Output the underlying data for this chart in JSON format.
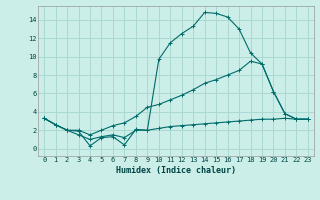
{
  "xlabel": "Humidex (Indice chaleur)",
  "bg_color": "#cceee8",
  "grid_color": "#aad8d0",
  "line_color": "#006b6b",
  "xlim": [
    -0.5,
    23.5
  ],
  "ylim": [
    -0.8,
    15.5
  ],
  "line1_x": [
    0,
    1,
    2,
    3,
    4,
    5,
    6,
    7,
    8,
    9,
    10,
    11,
    12,
    13,
    14,
    15,
    16,
    17,
    18,
    19,
    20,
    21,
    22,
    23
  ],
  "line1_y": [
    3.3,
    2.6,
    2.0,
    1.9,
    0.3,
    1.2,
    1.3,
    0.4,
    2.1,
    2.0,
    9.7,
    11.5,
    12.5,
    13.3,
    14.8,
    14.7,
    14.3,
    13.0,
    10.4,
    9.2,
    6.2,
    3.8,
    3.2,
    3.2
  ],
  "line2_x": [
    0,
    1,
    2,
    3,
    4,
    5,
    6,
    7,
    8,
    9,
    10,
    11,
    12,
    13,
    14,
    15,
    16,
    17,
    18,
    19,
    20,
    21,
    22,
    23
  ],
  "line2_y": [
    3.3,
    2.6,
    2.0,
    2.0,
    1.5,
    2.0,
    2.5,
    2.8,
    3.5,
    4.5,
    4.8,
    5.3,
    5.8,
    6.4,
    7.1,
    7.5,
    8.0,
    8.5,
    9.5,
    9.2,
    6.2,
    3.8,
    3.2,
    3.2
  ],
  "line3_x": [
    0,
    1,
    2,
    3,
    4,
    5,
    6,
    7,
    8,
    9,
    10,
    11,
    12,
    13,
    14,
    15,
    16,
    17,
    18,
    19,
    20,
    21,
    22,
    23
  ],
  "line3_y": [
    3.3,
    2.6,
    2.0,
    1.5,
    1.0,
    1.3,
    1.5,
    1.2,
    2.0,
    2.0,
    2.2,
    2.4,
    2.5,
    2.6,
    2.7,
    2.8,
    2.9,
    3.0,
    3.1,
    3.2,
    3.2,
    3.3,
    3.2,
    3.2
  ],
  "yticks": [
    0,
    2,
    4,
    6,
    8,
    10,
    12,
    14
  ],
  "xticks": [
    0,
    1,
    2,
    3,
    4,
    5,
    6,
    7,
    8,
    9,
    10,
    11,
    12,
    13,
    14,
    15,
    16,
    17,
    18,
    19,
    20,
    21,
    22,
    23
  ],
  "xlabel_fontsize": 6.0,
  "tick_fontsize": 5.0
}
